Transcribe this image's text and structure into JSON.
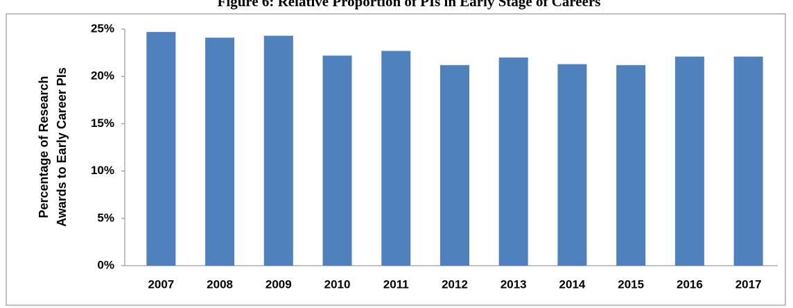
{
  "chart_data": {
    "type": "bar",
    "title": "Figure 6: Relative Proportion of PIs in Early Stage of Careers",
    "ylabel": [
      "Percentage of Research",
      "Awards to Early Career PIs"
    ],
    "categories": [
      "2007",
      "2008",
      "2009",
      "2010",
      "2011",
      "2012",
      "2013",
      "2014",
      "2015",
      "2016",
      "2017"
    ],
    "values": [
      24.7,
      24.1,
      24.3,
      22.2,
      22.7,
      21.2,
      22.0,
      21.3,
      21.2,
      22.1,
      22.1
    ],
    "color": "#4f81bd",
    "ylim": [
      0,
      25
    ],
    "yticks": [
      {
        "value": 0,
        "label": "0%"
      },
      {
        "value": 5,
        "label": "5%"
      },
      {
        "value": 10,
        "label": "10%"
      },
      {
        "value": 15,
        "label": "15%"
      },
      {
        "value": 20,
        "label": "20%"
      },
      {
        "value": 25,
        "label": "25%"
      }
    ],
    "grid": false
  }
}
